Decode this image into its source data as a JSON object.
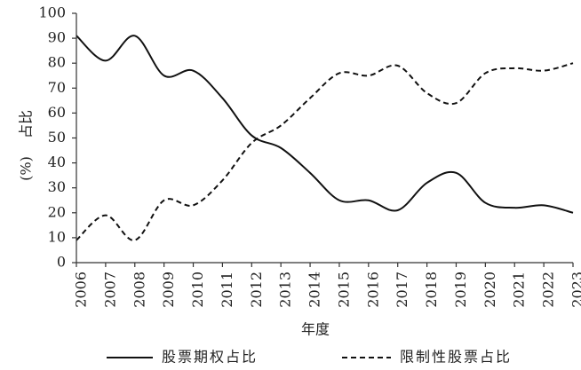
{
  "chart_data": {
    "type": "line",
    "x": [
      2006,
      2007,
      2008,
      2009,
      2010,
      2011,
      2012,
      2013,
      2014,
      2015,
      2016,
      2017,
      2018,
      2019,
      2020,
      2021,
      2022,
      2023
    ],
    "x_tick_labels": [
      "2006",
      "2007",
      "2008",
      "2009",
      "2010",
      "2011",
      "2012",
      "2013",
      "2014",
      "2015",
      "2016",
      "2017",
      "2018",
      "2019",
      "2020",
      "2021",
      "2022",
      "2023"
    ],
    "series": [
      {
        "name": "股票期权占比",
        "style": "solid",
        "color": "#111111",
        "values": [
          91,
          81,
          91,
          75,
          77,
          66,
          51,
          46,
          36,
          25,
          25,
          21,
          32,
          36,
          24,
          22,
          23,
          20
        ]
      },
      {
        "name": "限制性股票占比",
        "style": "dashed",
        "color": "#111111",
        "values": [
          9,
          19,
          9,
          25,
          23,
          33,
          48,
          55,
          66,
          76,
          75,
          79,
          68,
          64,
          76,
          78,
          77,
          80
        ]
      }
    ],
    "y_ticks": [
      0,
      10,
      20,
      30,
      40,
      50,
      60,
      70,
      80,
      90,
      100
    ],
    "ylim": [
      0,
      100
    ],
    "xlabel": "年度",
    "ylabel": "占比(%)",
    "ylabel_parts": [
      "占比",
      "(%)"
    ],
    "grid": false,
    "legend_position": "bottom"
  }
}
